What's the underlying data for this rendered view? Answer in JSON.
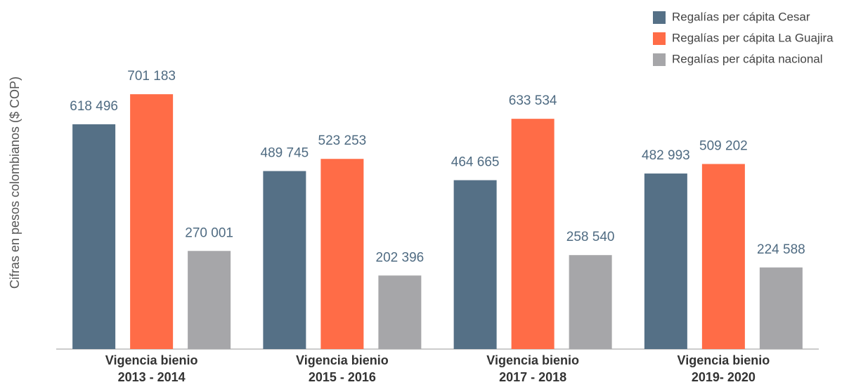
{
  "chart_data": {
    "type": "bar",
    "y_axis_label": "Cifras en pesos colombianos ($ COP)",
    "categories": [
      "Vigencia bienio 2013 - 2014",
      "Vigencia bienio 2015 - 2016",
      "Vigencia bienio 2017 - 2018",
      "Vigencia bienio 2019- 2020"
    ],
    "series": [
      {
        "name": "Regalías per cápita Cesar",
        "color": "#557086",
        "values": [
          618496,
          489745,
          464665,
          482993
        ],
        "value_labels": [
          "618 496",
          "489 745",
          "464 665",
          "482 993"
        ]
      },
      {
        "name": "Regalías per cápita La Guajira",
        "color": "#ff6c47",
        "values": [
          701183,
          523253,
          633534,
          509202
        ],
        "value_labels": [
          "701 183",
          "523 253",
          "633 534",
          "509 202"
        ]
      },
      {
        "name": "Regalías per cápita nacional",
        "color": "#a6a6a9",
        "values": [
          270001,
          202396,
          258540,
          224588
        ],
        "value_labels": [
          "270 001",
          "202 396",
          "258 540",
          "224 588"
        ]
      }
    ],
    "ylim": [
      0,
      800000
    ],
    "legend": "top-right"
  }
}
